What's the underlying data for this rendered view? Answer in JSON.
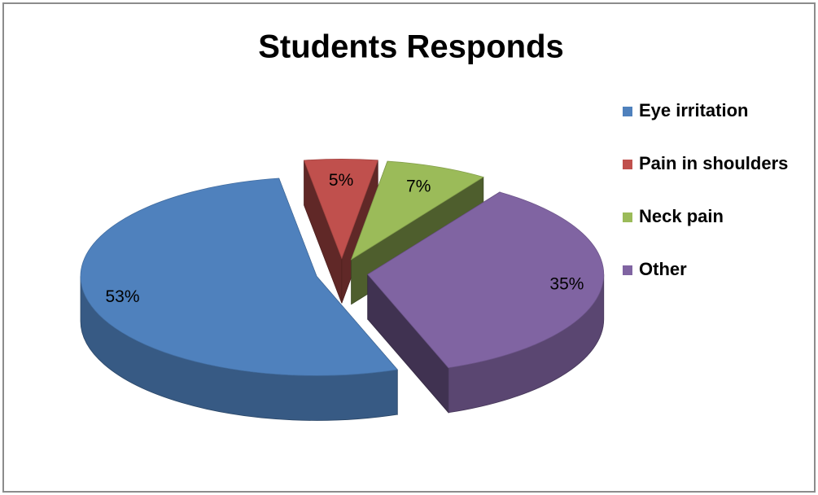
{
  "chart_data": {
    "type": "pie3d",
    "title": "Students Responds",
    "categories": [
      "Eye irritation",
      "Pain in shoulders",
      "Neck pain",
      "Other"
    ],
    "values": [
      53,
      5,
      7,
      35
    ],
    "value_labels": [
      "53%",
      "5%",
      "7%",
      "35%"
    ],
    "colors": [
      "#4f81bd",
      "#c0504d",
      "#9bbb59",
      "#8064a2"
    ],
    "legend": "right"
  }
}
